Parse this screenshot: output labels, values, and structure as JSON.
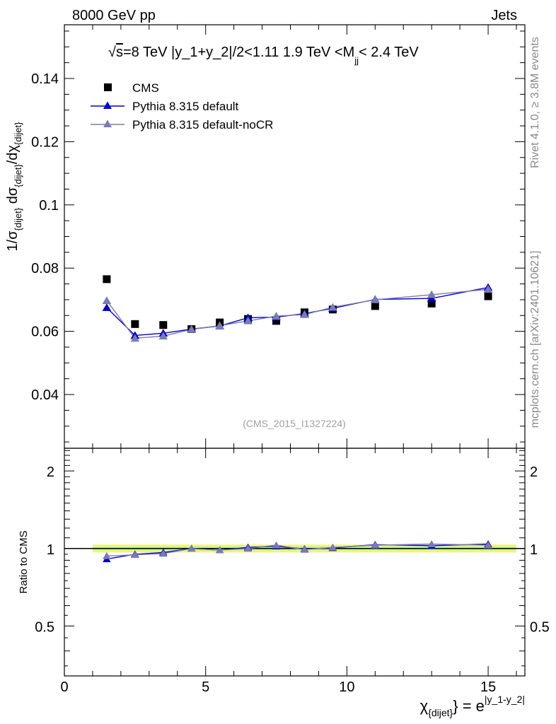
{
  "header": {
    "left_title": "8000 GeV pp",
    "right_title": "Jets"
  },
  "plot_title": {
    "sqrt": "√",
    "s": "s",
    "rest_a": "=8 TeV |y_1+y_2|/2<1.11 1.9 TeV <M",
    "sub": "jj",
    "rest_b": "< 2.4 TeV"
  },
  "watermark": "(CMS_2015_I1327224)",
  "side_labels": {
    "rivet": "Rivet 4.1.0, ≥ 3.8M events",
    "mcplots": "mcplots.cern.ch [arXiv:2401.10621]"
  },
  "ylabel_main": {
    "p1": "1/σ",
    "s1": "{dijet}",
    "p2": " dσ",
    "s2": "{dijet}",
    "p3": "/dχ",
    "s3": "{dijet}"
  },
  "ylabel_ratio": "Ratio to CMS",
  "xlabel": {
    "chi": "χ",
    "sub": "{dijet}",
    "mid": "} = e",
    "sup": "|y_1-y_2|"
  },
  "legend": [
    {
      "label": "CMS",
      "color": "#000000",
      "marker": "square"
    },
    {
      "label": "Pythia 8.315 default",
      "color": "#0000cc",
      "marker": "triangle"
    },
    {
      "label": "Pythia 8.315 default-noCR",
      "color": "#7a7ab8",
      "marker": "triangle"
    }
  ],
  "chart_data": {
    "type": "scatter",
    "title": "√s=8 TeV |y_1+y_2|/2<1.11 1.9 TeV <Mjj< 2.4 TeV",
    "xlabel": "χ_{dijet} = e^{|y_1-y_2|}",
    "ylabel": "1/σ_{dijet} dσ_{dijet}/dχ_{dijet}",
    "xlim": [
      0,
      16.3
    ],
    "ylim": [
      0.023,
      0.157
    ],
    "x_ticks": [
      0,
      5,
      10,
      15
    ],
    "y_ticks": [
      0.04,
      0.06,
      0.08,
      0.1,
      0.12,
      0.14
    ],
    "x_tick_labels": [
      "0",
      "5",
      "10",
      "15"
    ],
    "y_tick_labels": [
      "0.04",
      "0.06",
      "0.08",
      "0.1",
      "0.12",
      "0.14"
    ],
    "x": [
      1.5,
      2.5,
      3.5,
      4.5,
      5.5,
      6.5,
      7.5,
      8.5,
      9.5,
      11,
      13,
      15
    ],
    "series": [
      {
        "name": "CMS",
        "color": "#000000",
        "values": [
          0.0765,
          0.0623,
          0.062,
          0.0607,
          0.0628,
          0.0639,
          0.0633,
          0.066,
          0.0669,
          0.068,
          0.0688,
          0.0711
        ]
      },
      {
        "name": "Pythia 8.315 default",
        "color": "#0000cc",
        "values": [
          0.0675,
          0.0587,
          0.0594,
          0.0607,
          0.0617,
          0.0643,
          0.0645,
          0.0656,
          0.0673,
          0.0701,
          0.0704,
          0.0739
        ]
      },
      {
        "name": "Pythia 8.315 default-noCR",
        "color": "#7a7ab8",
        "values": [
          0.0697,
          0.0578,
          0.0585,
          0.0606,
          0.0618,
          0.0633,
          0.0648,
          0.0653,
          0.0676,
          0.07,
          0.0716,
          0.0733
        ]
      }
    ],
    "ratio": {
      "ylabel": "Ratio to CMS",
      "ylim": [
        0.32,
        2.45
      ],
      "y_ticks": [
        0.5,
        1,
        2
      ],
      "y_tick_labels": [
        "0.5",
        "1",
        "2"
      ],
      "band_inner": 0.015,
      "band_outer": 0.035,
      "series": [
        {
          "name": "Pythia 8.315 default",
          "color": "#0000cc",
          "values": [
            0.91,
            0.95,
            0.965,
            1.0,
            0.985,
            1.01,
            1.02,
            0.995,
            1.005,
            1.035,
            1.025,
            1.04
          ]
        },
        {
          "name": "Pythia 8.315 default-noCR",
          "color": "#7a7ab8",
          "values": [
            0.935,
            0.945,
            0.955,
            1.0,
            0.985,
            1.0,
            1.03,
            0.99,
            1.01,
            1.03,
            1.04,
            1.03
          ]
        }
      ]
    }
  }
}
